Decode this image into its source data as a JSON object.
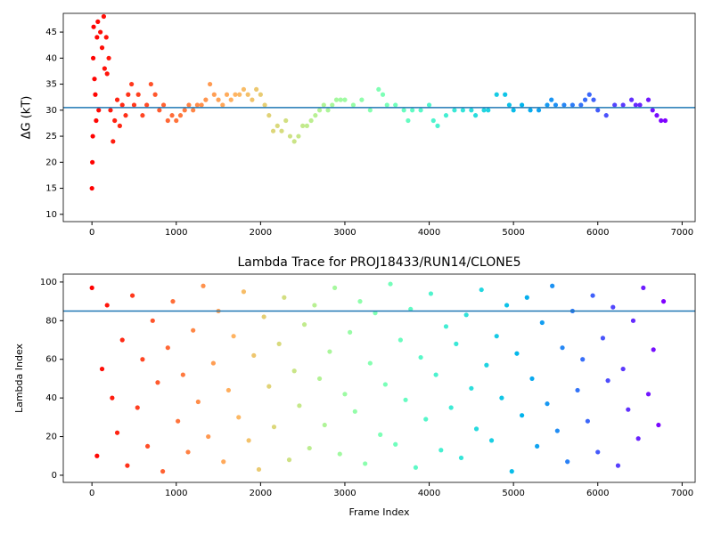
{
  "chart_data": [
    {
      "type": "scatter",
      "y_label": "ΔG (kT)",
      "colormap": "rainbow_r",
      "xlim": [
        -340,
        7155
      ],
      "xticks": [
        0,
        1000,
        2000,
        3000,
        4000,
        5000,
        6000,
        7000
      ],
      "ylim": [
        8.6,
        48.6
      ],
      "yticks": [
        10,
        15,
        20,
        25,
        30,
        35,
        40,
        45
      ],
      "reference_line": 30.5,
      "reference_line_color": "#1f77b4",
      "x": [
        0,
        5,
        10,
        15,
        20,
        30,
        40,
        50,
        60,
        70,
        80,
        100,
        120,
        140,
        150,
        170,
        180,
        200,
        220,
        250,
        270,
        300,
        330,
        360,
        400,
        430,
        470,
        500,
        550,
        600,
        650,
        700,
        750,
        800,
        850,
        900,
        950,
        1000,
        1050,
        1100,
        1150,
        1200,
        1250,
        1300,
        1350,
        1400,
        1450,
        1500,
        1550,
        1600,
        1650,
        1700,
        1750,
        1800,
        1850,
        1900,
        1950,
        2000,
        2050,
        2100,
        2150,
        2200,
        2250,
        2300,
        2350,
        2400,
        2450,
        2500,
        2550,
        2600,
        2650,
        2700,
        2750,
        2800,
        2850,
        2900,
        2950,
        3000,
        3100,
        3200,
        3300,
        3400,
        3450,
        3500,
        3600,
        3700,
        3750,
        3800,
        3900,
        4000,
        4050,
        4100,
        4200,
        4300,
        4400,
        4500,
        4550,
        4650,
        4700,
        4800,
        4900,
        4950,
        5000,
        5100,
        5200,
        5300,
        5400,
        5450,
        5500,
        5600,
        5700,
        5800,
        5850,
        5900,
        5950,
        6000,
        6100,
        6200,
        6300,
        6400,
        6450,
        6500,
        6600,
        6650,
        6700,
        6750,
        6800
      ],
      "values": [
        15,
        20,
        25,
        40,
        46,
        36,
        33,
        28,
        44,
        47,
        30,
        45,
        42,
        48,
        38,
        44,
        37,
        40,
        30,
        24,
        28,
        32,
        27,
        31,
        29,
        33,
        35,
        31,
        33,
        29,
        31,
        35,
        33,
        30,
        31,
        28,
        29,
        28,
        29,
        30,
        31,
        30,
        31,
        31,
        32,
        35,
        33,
        32,
        31,
        33,
        32,
        33,
        33,
        34,
        33,
        32,
        34,
        33,
        31,
        29,
        26,
        27,
        26,
        28,
        25,
        24,
        25,
        27,
        27,
        28,
        29,
        30,
        31,
        30,
        31,
        32,
        32,
        32,
        31,
        32,
        30,
        34,
        33,
        31,
        31,
        30,
        28,
        30,
        30,
        31,
        28,
        27,
        29,
        30,
        30,
        30,
        29,
        30,
        30,
        33,
        33,
        31,
        30,
        31,
        30,
        30,
        31,
        32,
        31,
        31,
        31,
        31,
        32,
        33,
        32,
        30,
        29,
        31,
        31,
        32,
        31,
        31,
        32,
        30,
        29,
        28,
        28
      ]
    },
    {
      "type": "scatter",
      "title": "Lambda Trace for PROJ18433/RUN14/CLONE5",
      "x_label": "Frame Index",
      "y_label": "Lambda Index",
      "colormap": "rainbow_r",
      "xlim": [
        -340,
        7155
      ],
      "xticks": [
        0,
        1000,
        2000,
        3000,
        4000,
        5000,
        6000,
        7000
      ],
      "ylim": [
        -3.7,
        104.1
      ],
      "yticks": [
        0,
        20,
        40,
        60,
        80,
        100
      ],
      "reference_line": 85,
      "reference_line_color": "#1f77b4",
      "x": [
        0,
        60,
        120,
        180,
        240,
        300,
        360,
        420,
        480,
        540,
        600,
        660,
        720,
        780,
        840,
        900,
        960,
        1020,
        1080,
        1140,
        1200,
        1260,
        1320,
        1380,
        1440,
        1500,
        1560,
        1620,
        1680,
        1740,
        1800,
        1860,
        1920,
        1980,
        2040,
        2100,
        2160,
        2220,
        2280,
        2340,
        2400,
        2460,
        2520,
        2580,
        2640,
        2700,
        2760,
        2820,
        2880,
        2940,
        3000,
        3060,
        3120,
        3180,
        3240,
        3300,
        3360,
        3420,
        3480,
        3540,
        3600,
        3660,
        3720,
        3780,
        3840,
        3900,
        3960,
        4020,
        4080,
        4140,
        4200,
        4260,
        4320,
        4380,
        4440,
        4500,
        4560,
        4620,
        4680,
        4740,
        4800,
        4860,
        4920,
        4980,
        5040,
        5100,
        5160,
        5220,
        5280,
        5340,
        5400,
        5460,
        5520,
        5580,
        5640,
        5700,
        5760,
        5820,
        5880,
        5940,
        6000,
        6060,
        6120,
        6180,
        6240,
        6300,
        6360,
        6420,
        6480,
        6540,
        6600,
        6660,
        6720,
        6780
      ],
      "values": [
        97,
        10,
        55,
        88,
        40,
        22,
        70,
        5,
        93,
        35,
        60,
        15,
        80,
        48,
        2,
        66,
        90,
        28,
        52,
        12,
        75,
        38,
        98,
        20,
        58,
        85,
        7,
        44,
        72,
        30,
        95,
        18,
        62,
        3,
        82,
        46,
        25,
        68,
        92,
        8,
        54,
        36,
        78,
        14,
        88,
        50,
        26,
        64,
        97,
        11,
        42,
        74,
        33,
        90,
        6,
        58,
        84,
        21,
        47,
        99,
        16,
        70,
        39,
        86,
        4,
        61,
        29,
        94,
        52,
        13,
        77,
        35,
        68,
        9,
        83,
        45,
        24,
        96,
        57,
        18,
        72,
        40,
        88,
        2,
        63,
        31,
        92,
        50,
        15,
        79,
        37,
        98,
        23,
        66,
        7,
        85,
        44,
        60,
        28,
        93,
        12,
        71,
        49,
        87,
        5,
        55,
        34,
        80,
        19,
        97,
        42,
        65,
        26,
        90
      ]
    }
  ]
}
